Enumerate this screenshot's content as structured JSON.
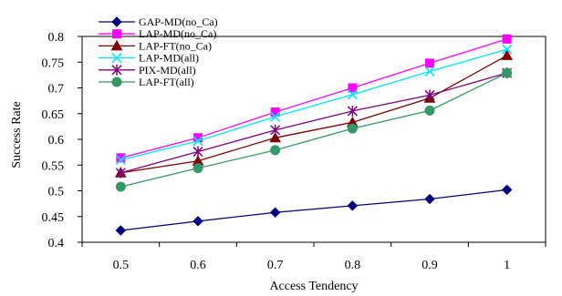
{
  "chart_data": {
    "type": "line",
    "title": "",
    "xlabel": "Access Tendency",
    "ylabel": "Success Rate",
    "x": [
      0.5,
      0.6,
      0.7,
      0.8,
      0.9,
      1
    ],
    "x_tick_labels": [
      "0.5",
      "0.6",
      "0.7",
      "0.8",
      "0.9",
      "1"
    ],
    "ylim": [
      0.4,
      0.8
    ],
    "y_ticks": [
      0.4,
      0.45,
      0.5,
      0.55,
      0.6,
      0.65,
      0.7,
      0.75,
      0.8
    ],
    "y_tick_labels": [
      "0.4",
      "0.45",
      "0.5",
      "0.55",
      "0.6",
      "0.65",
      "0.7",
      "0.75",
      "0.8"
    ],
    "grid": false,
    "legend_position": "top-left",
    "series": [
      {
        "name": "GAP-MD(no_Ca)",
        "color": "#000080",
        "marker": "diamond",
        "values": [
          0.423,
          0.441,
          0.458,
          0.471,
          0.484,
          0.502
        ]
      },
      {
        "name": "LAP-MD(no_Ca)",
        "color": "#FF00FF",
        "marker": "square",
        "values": [
          0.564,
          0.603,
          0.653,
          0.7,
          0.748,
          0.795
        ]
      },
      {
        "name": "LAP-FT(no_Ca)",
        "color": "#800000",
        "marker": "triangle",
        "values": [
          0.535,
          0.558,
          0.603,
          0.633,
          0.68,
          0.763
        ]
      },
      {
        "name": "LAP-MD(all)",
        "color": "#00E5FF",
        "marker": "x",
        "values": [
          0.56,
          0.597,
          0.644,
          0.687,
          0.732,
          0.775
        ]
      },
      {
        "name": "PIX-MD(all)",
        "color": "#800080",
        "marker": "asterisk",
        "values": [
          0.535,
          0.576,
          0.618,
          0.655,
          0.686,
          0.729
        ]
      },
      {
        "name": "LAP-FT(all)",
        "color": "#339966",
        "marker": "circle",
        "values": [
          0.508,
          0.544,
          0.579,
          0.621,
          0.656,
          0.729
        ]
      }
    ]
  }
}
